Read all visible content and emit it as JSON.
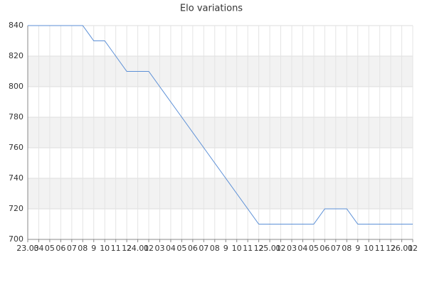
{
  "chart_data": {
    "type": "line",
    "title": "Elo variations",
    "categories": [
      "23.03",
      "04",
      "05",
      "06",
      "07",
      "08",
      "9",
      "10",
      "11",
      "12",
      "24.01",
      "02",
      "03",
      "04",
      "05",
      "06",
      "07",
      "08",
      "9",
      "10",
      "11",
      "12",
      "25.01",
      "02",
      "03",
      "04",
      "05",
      "06",
      "07",
      "08",
      "9",
      "10",
      "11",
      "12",
      "26.01",
      "02"
    ],
    "series": [
      {
        "name": "Elo",
        "color": "#5b8fd6",
        "values": [
          840,
          840,
          840,
          840,
          840,
          840,
          830,
          830,
          820,
          810,
          810,
          810,
          800,
          790,
          780,
          770,
          760,
          750,
          740,
          730,
          720,
          710,
          710,
          710,
          710,
          710,
          710,
          720,
          720,
          720,
          710,
          710,
          710,
          710,
          710,
          710
        ]
      }
    ],
    "ylim": [
      700,
      840
    ],
    "yticks": [
      700,
      720,
      740,
      760,
      780,
      800,
      820,
      840
    ],
    "grid": true
  }
}
